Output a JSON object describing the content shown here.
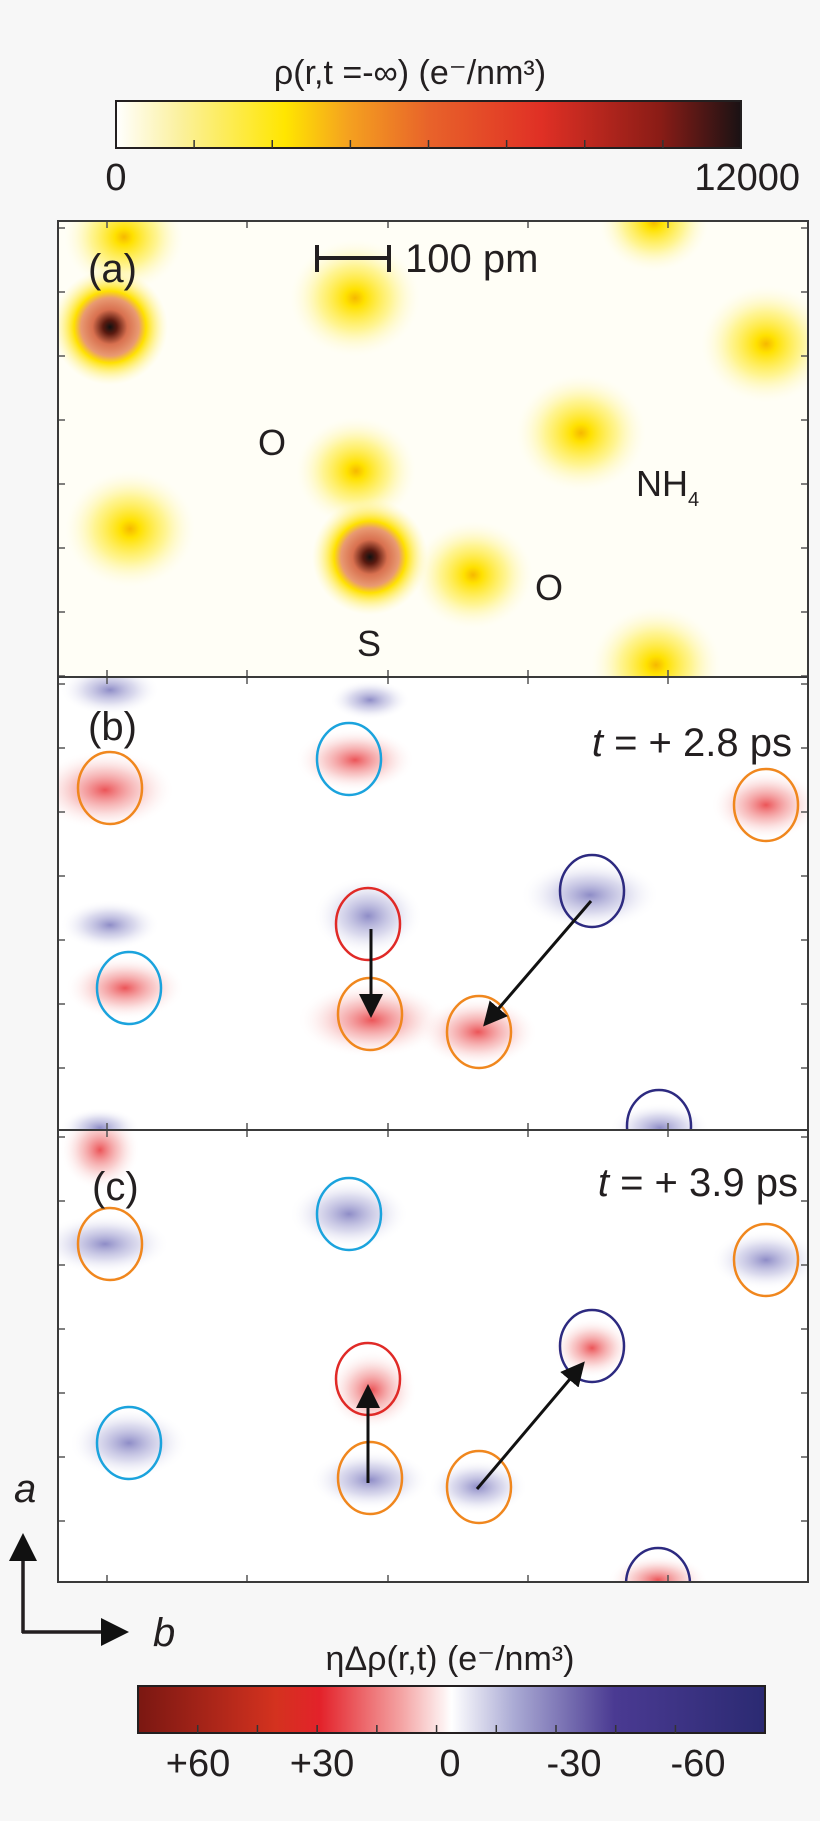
{
  "top_colorbar": {
    "title": "ρ(r,t =-∞)  (e⁻/nm³)",
    "min_label": "0",
    "max_label": "12000",
    "range": [
      0,
      12000
    ],
    "colors": [
      "#ffffff",
      "#fbf1a0",
      "#ffe600",
      "#f5a21f",
      "#e8632a",
      "#e03025",
      "#8a1c16",
      "#1a1214"
    ]
  },
  "panel_a": {
    "label": "(a)",
    "scale_bar": "100 pm",
    "atom_labels": {
      "o1": "O",
      "nh4": "NH",
      "nh4_sub": "4",
      "o2": "O",
      "s": "S"
    }
  },
  "panel_b": {
    "label": "(b)",
    "time_t": "t",
    "time_value": " = + 2.8 ps"
  },
  "panel_c": {
    "label": "(c)",
    "time_t": "t",
    "time_value": " = + 3.9 ps"
  },
  "circle_colors": {
    "orange": "#f0871e",
    "cyan": "#1ba3dd",
    "red": "#e02a27",
    "navy": "#2d2a80"
  },
  "axes": {
    "a": "a",
    "b": "b"
  },
  "bottom_colorbar": {
    "title": "ηΔρ(r,t)  (e⁻/nm³)",
    "tick_labels": [
      "+60",
      "+30",
      "0",
      "-30",
      "-60"
    ],
    "colors": [
      "#7a1712",
      "#d4321f",
      "#e3222a",
      "#f4a3a3",
      "#ffffff",
      "#aaaad4",
      "#4a3a92",
      "#2b2a72"
    ]
  }
}
